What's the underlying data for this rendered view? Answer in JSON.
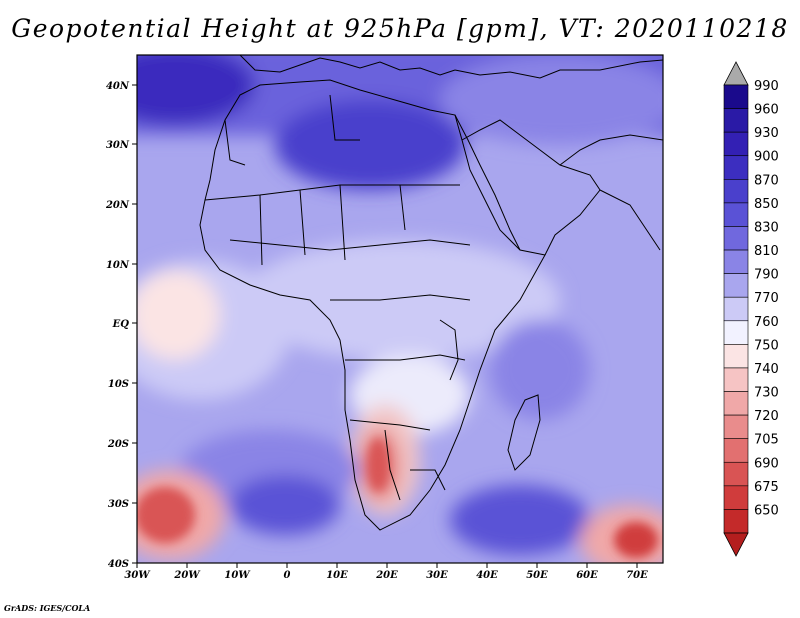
{
  "title": "Geopotential Height at 925hPa [gpm], VT: 2020110218",
  "credit": "GrADS: IGES/COLA",
  "map": {
    "lon_ticks": [
      "30W",
      "20W",
      "10W",
      "0",
      "10E",
      "20E",
      "30E",
      "40E",
      "50E",
      "60E",
      "70E"
    ],
    "lat_ticks": [
      "40N",
      "30N",
      "20N",
      "10N",
      "EQ",
      "10S",
      "20S",
      "30S",
      "40S"
    ]
  },
  "colorbar": {
    "levels": [
      {
        "label": "990",
        "color": "#1a0a8c"
      },
      {
        "label": "960",
        "color": "#2a1aa6"
      },
      {
        "label": "930",
        "color": "#3320b4"
      },
      {
        "label": "900",
        "color": "#3c2ec0"
      },
      {
        "label": "870",
        "color": "#4a40cc"
      },
      {
        "label": "850",
        "color": "#5a52d6"
      },
      {
        "label": "830",
        "color": "#7068de"
      },
      {
        "label": "810",
        "color": "#8a84e6"
      },
      {
        "label": "790",
        "color": "#a9a6ee"
      },
      {
        "label": "770",
        "color": "#cccaf6"
      },
      {
        "label": "760",
        "color": "#f2f2ff"
      },
      {
        "label": "750",
        "color": "#fbe4e4"
      },
      {
        "label": "740",
        "color": "#f6c4c4"
      },
      {
        "label": "730",
        "color": "#f0a8a8"
      },
      {
        "label": "720",
        "color": "#e98c8c"
      },
      {
        "label": "705",
        "color": "#e27070"
      },
      {
        "label": "690",
        "color": "#d95454"
      },
      {
        "label": "675",
        "color": "#d03c3c"
      },
      {
        "label": "650",
        "color": "#c42a2a"
      }
    ],
    "over_color": "#aaaaaa",
    "under_color": "#b41e1e"
  }
}
